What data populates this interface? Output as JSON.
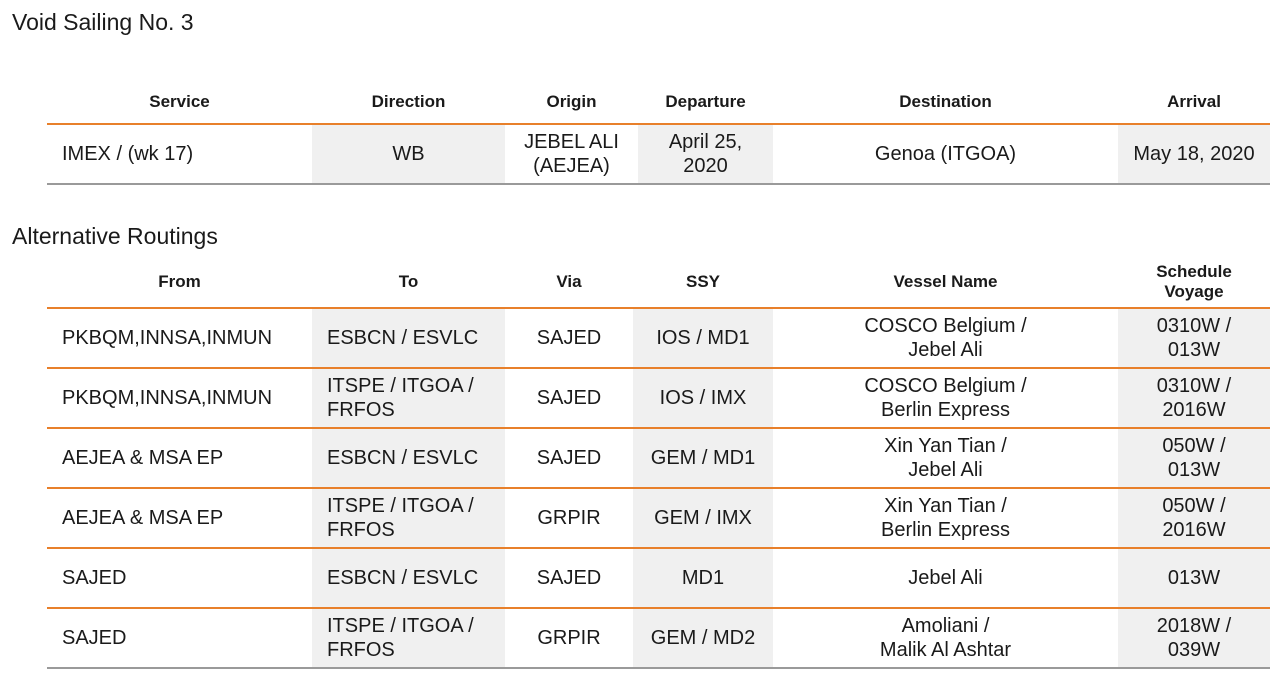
{
  "void_section": {
    "title": "Void Sailing No. 3",
    "headers": [
      "Service",
      "Direction",
      "Origin",
      "Departure",
      "Destination",
      "Arrival"
    ],
    "row": {
      "service": "IMEX / (wk 17)",
      "direction": "WB",
      "origin": "JEBEL ALI\n(AEJEA)",
      "departure": "April 25,\n2020",
      "destination": "Genoa (ITGOA)",
      "arrival": "May 18, 2020"
    }
  },
  "alt_section": {
    "title": "Alternative Routings",
    "headers": [
      "From",
      "To",
      "Via",
      "SSY",
      "Vessel Name",
      "Schedule\nVoyage"
    ],
    "rows": [
      {
        "from": "PKBQM,INNSA,INMUN",
        "to": "ESBCN / ESVLC",
        "via": "SAJED",
        "ssy": "IOS / MD1",
        "vessel": "COSCO Belgium /\nJebel Ali",
        "voyage": "0310W /\n013W"
      },
      {
        "from": "PKBQM,INNSA,INMUN",
        "to": "ITSPE / ITGOA /\nFRFOS",
        "via": "SAJED",
        "ssy": "IOS / IMX",
        "vessel": "COSCO Belgium /\nBerlin Express",
        "voyage": "0310W /\n2016W"
      },
      {
        "from": "AEJEA & MSA EP",
        "to": "ESBCN / ESVLC",
        "via": "SAJED",
        "ssy": "GEM / MD1",
        "vessel": "Xin Yan Tian /\nJebel Ali",
        "voyage": "050W /\n013W"
      },
      {
        "from": "AEJEA & MSA EP",
        "to": "ITSPE / ITGOA /\nFRFOS",
        "via": "GRPIR",
        "ssy": "GEM / IMX",
        "vessel": "Xin Yan Tian /\nBerlin Express",
        "voyage": "050W /\n2016W"
      },
      {
        "from": "SAJED",
        "to": "ESBCN / ESVLC",
        "via": "SAJED",
        "ssy": "MD1",
        "vessel": "Jebel Ali",
        "voyage": "013W"
      },
      {
        "from": "SAJED",
        "to": "ITSPE / ITGOA /\nFRFOS",
        "via": "GRPIR",
        "ssy": "GEM / MD2",
        "vessel": "Amoliani /\nMalik Al Ashtar",
        "voyage": "2018W /\n039W"
      }
    ]
  }
}
